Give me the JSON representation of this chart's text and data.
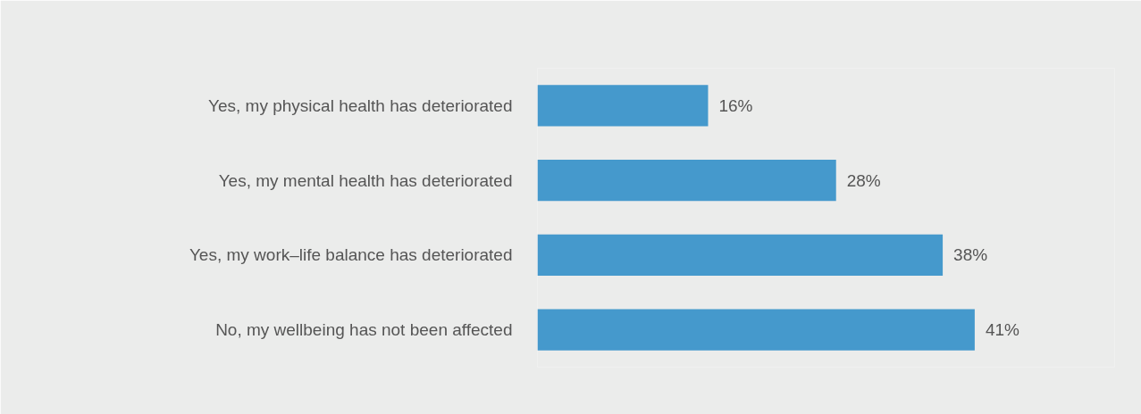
{
  "chart_data": {
    "type": "bar",
    "orientation": "horizontal",
    "categories": [
      "Yes, my physical health has deteriorated",
      "Yes, my mental health has deteriorated",
      "Yes, my work–life balance has deteriorated",
      "No, my wellbeing has not been affected"
    ],
    "values": [
      16,
      28,
      38,
      41
    ],
    "value_labels": [
      "16%",
      "28%",
      "38%",
      "41%"
    ],
    "color": "#4599cc",
    "grid": false
  }
}
